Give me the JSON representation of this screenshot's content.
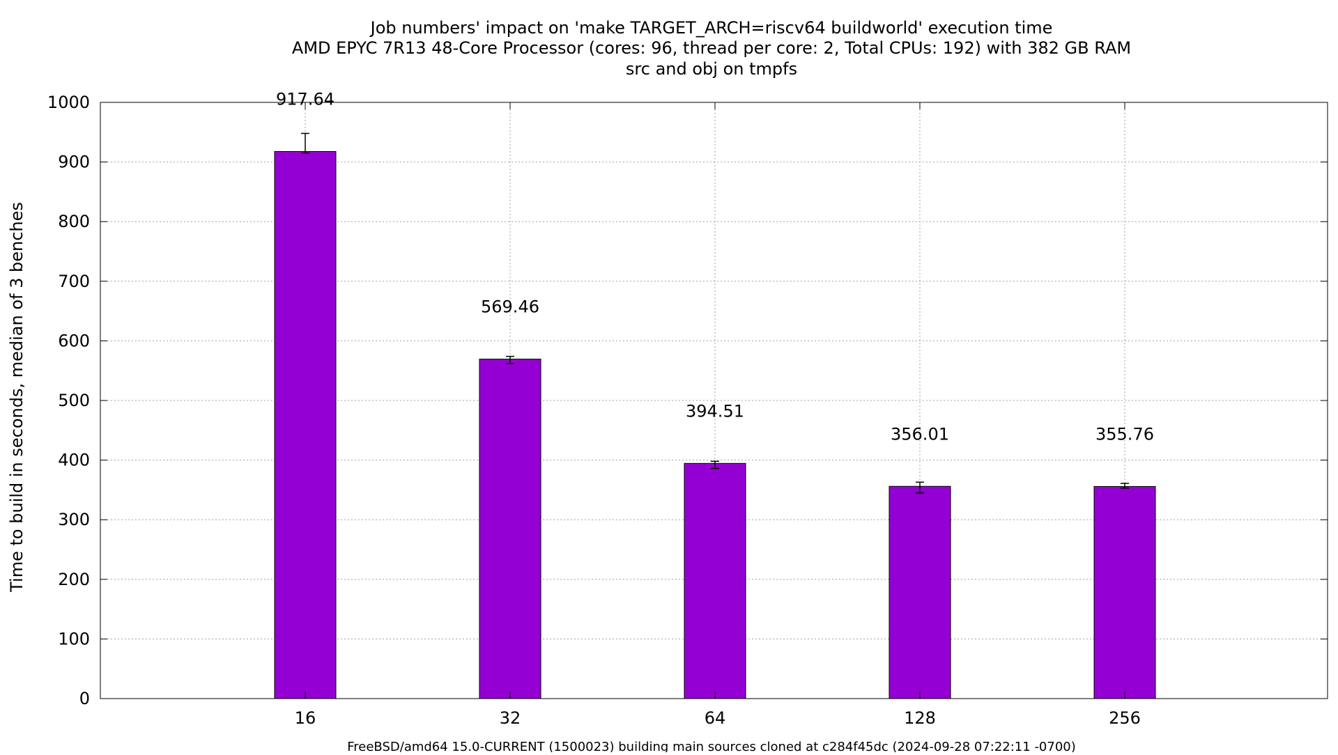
{
  "chart_data": {
    "type": "bar",
    "title_lines": [
      "Job numbers' impact on 'make TARGET_ARCH=riscv64 buildworld' execution time",
      "AMD EPYC 7R13 48-Core Processor (cores: 96, thread per core: 2, Total CPUs: 192) with 382 GB RAM",
      "src and obj on tmpfs"
    ],
    "xlabel": "FreeBSD/amd64 15.0-CURRENT (1500023) building main sources cloned at c284f45dc (2024-09-28 07:22:11 -0700)",
    "ylabel": "Time to build in seconds, median of 3 benches",
    "ylim": [
      0,
      1000
    ],
    "yticks": [
      0,
      100,
      200,
      300,
      400,
      500,
      600,
      700,
      800,
      900,
      1000
    ],
    "categories": [
      "16",
      "32",
      "64",
      "128",
      "256"
    ],
    "values": [
      917.64,
      569.46,
      394.51,
      356.01,
      355.76
    ],
    "value_labels": [
      "917.64",
      "569.46",
      "394.51",
      "356.01",
      "355.76"
    ],
    "error_low": [
      915,
      562,
      386,
      345,
      353
    ],
    "error_high": [
      948,
      574,
      398,
      363,
      361
    ],
    "bar_color": "#9400d3",
    "grid": true
  }
}
